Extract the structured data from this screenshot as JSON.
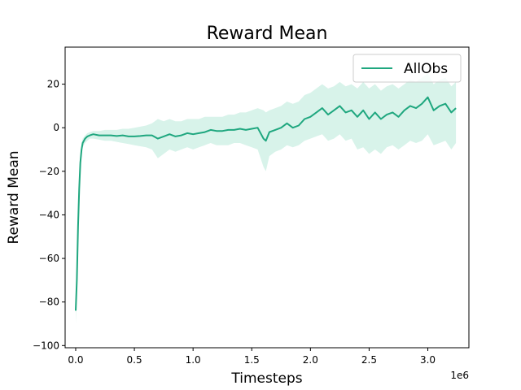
{
  "chart_data": {
    "type": "line",
    "title": "Reward Mean",
    "xlabel": "Timesteps",
    "ylabel": "Reward Mean",
    "x_offset_label": "1e6",
    "xlim": [
      -0.09,
      3.35
    ],
    "ylim": [
      -101,
      37
    ],
    "xticks": [
      0.0,
      0.5,
      1.0,
      1.5,
      2.0,
      2.5,
      3.0
    ],
    "xtick_labels": [
      "0.0",
      "0.5",
      "1.0",
      "1.5",
      "2.0",
      "2.5",
      "3.0"
    ],
    "yticks": [
      -100,
      -80,
      -60,
      -40,
      -20,
      0,
      20
    ],
    "ytick_labels": [
      "−100",
      "−80",
      "−60",
      "−40",
      "−20",
      "0",
      "20"
    ],
    "grid": false,
    "legend": "upper right",
    "series": [
      {
        "name": "AllObs",
        "color": "#1fa77f",
        "band_color": "#d8f3ea",
        "x": [
          0.0,
          0.01,
          0.02,
          0.03,
          0.04,
          0.05,
          0.06,
          0.08,
          0.1,
          0.12,
          0.15,
          0.2,
          0.25,
          0.3,
          0.35,
          0.4,
          0.45,
          0.5,
          0.55,
          0.6,
          0.65,
          0.7,
          0.75,
          0.8,
          0.85,
          0.9,
          0.95,
          1.0,
          1.05,
          1.1,
          1.15,
          1.2,
          1.25,
          1.3,
          1.35,
          1.4,
          1.45,
          1.5,
          1.55,
          1.6,
          1.62,
          1.65,
          1.7,
          1.75,
          1.8,
          1.85,
          1.9,
          1.95,
          2.0,
          2.05,
          2.1,
          2.15,
          2.2,
          2.25,
          2.3,
          2.35,
          2.4,
          2.45,
          2.5,
          2.55,
          2.6,
          2.65,
          2.7,
          2.75,
          2.8,
          2.85,
          2.9,
          2.95,
          3.0,
          3.05,
          3.1,
          3.15,
          3.2,
          3.24
        ],
        "y": [
          -84,
          -70,
          -45,
          -28,
          -16,
          -10,
          -7,
          -5,
          -4,
          -3.5,
          -3,
          -3.5,
          -3.5,
          -3.5,
          -3.8,
          -3.5,
          -4,
          -4,
          -3.8,
          -3.5,
          -3.5,
          -5,
          -4,
          -3,
          -4,
          -3.5,
          -2.5,
          -3,
          -2.5,
          -2,
          -1,
          -1.5,
          -1.5,
          -1,
          -1,
          -0.5,
          -1,
          -0.5,
          0,
          -5,
          -6,
          -2,
          -1,
          0,
          2,
          0,
          1,
          4,
          5,
          7,
          9,
          6,
          8,
          10,
          7,
          8,
          5,
          8,
          4,
          7,
          4,
          6,
          7,
          5,
          8,
          10,
          9,
          11,
          14,
          8,
          10,
          11,
          7,
          9
        ],
        "lower": [
          -90,
          -76,
          -52,
          -34,
          -20,
          -13,
          -9,
          -7,
          -6,
          -5,
          -5,
          -5.5,
          -6,
          -6,
          -6.5,
          -7,
          -7.5,
          -8,
          -8.5,
          -9,
          -10,
          -14,
          -12,
          -10,
          -11,
          -10,
          -9,
          -10,
          -9,
          -8,
          -7,
          -8,
          -8,
          -8,
          -7,
          -7,
          -8,
          -9,
          -10,
          -18,
          -20,
          -13,
          -11,
          -10,
          -8,
          -9,
          -8,
          -6,
          -5,
          -4,
          -3,
          -6,
          -5,
          -3,
          -6,
          -5,
          -10,
          -9,
          -12,
          -10,
          -12,
          -9,
          -8,
          -10,
          -8,
          -6,
          -7,
          -6,
          -3,
          -8,
          -7,
          -6,
          -10,
          -7
        ],
        "upper": [
          -78,
          -64,
          -38,
          -22,
          -12,
          -7,
          -5,
          -3.5,
          -2.5,
          -2,
          -1.5,
          -1.5,
          -1,
          -1,
          -1,
          -0.5,
          -0.5,
          0,
          0.5,
          1,
          2,
          4,
          3,
          4,
          3,
          3,
          4,
          4,
          4,
          5,
          5,
          5,
          5,
          6,
          6,
          7,
          7,
          8,
          9,
          8,
          7,
          8,
          9,
          10,
          12,
          11,
          12,
          15,
          16,
          18,
          20,
          18,
          19,
          21,
          19,
          20,
          18,
          21,
          18,
          20,
          17,
          19,
          20,
          18,
          20,
          22,
          21,
          23,
          25,
          20,
          22,
          23,
          19,
          21
        ]
      }
    ]
  }
}
